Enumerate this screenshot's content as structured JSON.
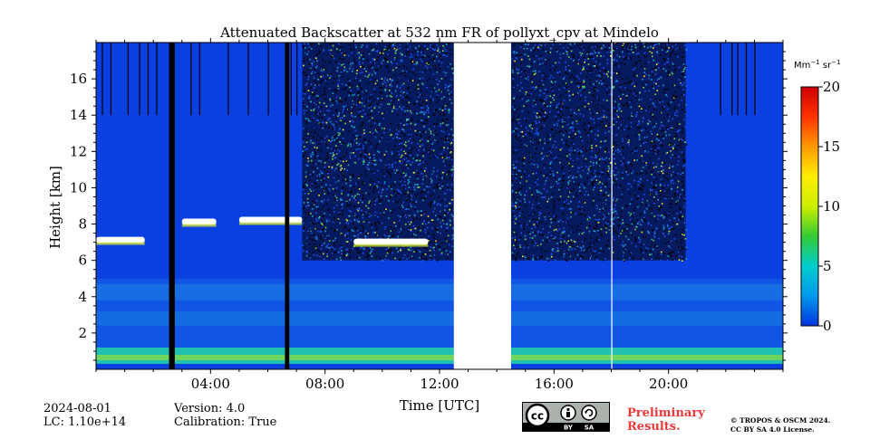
{
  "chart_data": {
    "type": "heatmap",
    "title": "Attenuated Backscatter at 532 nm FR of pollyxt_cpv at Mindelo",
    "xlabel": "Time [UTC]",
    "ylabel": "Height [km]",
    "x_tick_labels": [
      "04:00",
      "08:00",
      "12:00",
      "16:00",
      "20:00"
    ],
    "x_ticks_hours": [
      4,
      8,
      12,
      16,
      20
    ],
    "xlim_hours": [
      0,
      24
    ],
    "y_ticks": [
      2,
      4,
      6,
      8,
      10,
      12,
      14,
      16
    ],
    "ylim": [
      0,
      18
    ],
    "colorbar": {
      "unit_label": "Mm",
      "unit_sup1": "−1",
      "unit_mid": " sr",
      "unit_sup2": "−1",
      "ticks": [
        0,
        5,
        10,
        15,
        20
      ],
      "range": [
        0,
        20
      ],
      "colors": [
        "#0033dd",
        "#0099ee",
        "#00cccc",
        "#33cc33",
        "#ccee00",
        "#ffee00",
        "#ff9900",
        "#ff3300",
        "#cc0000"
      ]
    },
    "no_data_gap_hours": [
      12.5,
      14.5
    ],
    "cloud_layers": [
      {
        "start_hour": 0.0,
        "end_hour": 1.7,
        "height_km": 7.1
      },
      {
        "start_hour": 3.0,
        "end_hour": 4.2,
        "height_km": 8.1
      },
      {
        "start_hour": 5.0,
        "end_hour": 7.2,
        "height_km": 8.2
      },
      {
        "start_hour": 9.0,
        "end_hour": 11.6,
        "height_km": 7.0
      }
    ],
    "aerosol_layer_km": [
      0.3,
      5.0
    ],
    "grid": false
  },
  "meta": {
    "date": "2024-08-01",
    "lc": "LC: 1.10e+14",
    "version": "Version: 4.0",
    "calibration": "Calibration: True"
  },
  "license": {
    "cc": "cc",
    "by": "BY",
    "sa": "SA",
    "preliminary_line1": "Preliminary",
    "preliminary_line2": "Results.",
    "copyright_line1": "© TROPOS & OSCM 2024.",
    "copyright_line2": "CC BY SA 4.0 License."
  }
}
